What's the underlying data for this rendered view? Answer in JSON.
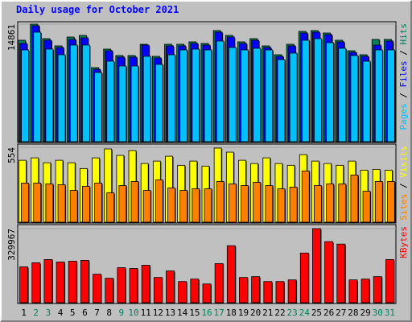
{
  "legend_separator": " / ",
  "chart_data": [
    {
      "type": "bar",
      "title": "Daily usage for October 2021",
      "ylim": [
        0,
        14861
      ],
      "yticks": [
        14861
      ],
      "series": [
        {
          "name": "Hits",
          "color": "#00805c",
          "values": [
            12827,
            14861,
            13030,
            12114,
            13233,
            13437,
            9365,
            11706,
            10891,
            10891,
            12317,
            10790,
            12317,
            12317,
            12623,
            12419,
            14047,
            13437,
            12623,
            13030,
            12114,
            10993,
            12317,
            13946,
            14047,
            13742,
            12827,
            11502,
            10993,
            12928,
            12928
          ]
        },
        {
          "name": "Files",
          "color": "#0000ff",
          "values": [
            12420,
            14657,
            12827,
            11910,
            12928,
            13131,
            9161,
            11502,
            10688,
            10688,
            12216,
            10586,
            12114,
            12114,
            12420,
            12216,
            13845,
            13233,
            12420,
            12827,
            11910,
            10790,
            12114,
            13742,
            13845,
            13538,
            12623,
            11299,
            10790,
            12216,
            12725
          ]
        },
        {
          "name": "Pages",
          "color": "#00c0ff",
          "values": [
            11605,
            13845,
            11707,
            10994,
            12216,
            12216,
            8755,
            10180,
            9569,
            9569,
            10791,
            9773,
            10994,
            11605,
            11707,
            11605,
            12725,
            11911,
            11605,
            11809,
            11605,
            10384,
            11198,
            12827,
            13030,
            12521,
            11809,
            10893,
            10180,
            11605,
            11605
          ]
        }
      ]
    },
    {
      "type": "bar",
      "ylim": [
        0,
        554
      ],
      "yticks": [
        554
      ],
      "series": [
        {
          "name": "Visits",
          "color": "#ffff00",
          "values": [
            458,
            476,
            440,
            458,
            440,
            397,
            476,
            542,
            494,
            530,
            434,
            452,
            488,
            421,
            452,
            415,
            548,
            518,
            458,
            434,
            476,
            434,
            421,
            500,
            452,
            434,
            421,
            452,
            385,
            391,
            385
          ]
        },
        {
          "name": "Sites",
          "color": "#ff8000",
          "values": [
            289,
            289,
            283,
            277,
            235,
            265,
            289,
            217,
            271,
            301,
            235,
            313,
            253,
            235,
            247,
            247,
            301,
            283,
            271,
            295,
            271,
            247,
            259,
            379,
            271,
            283,
            283,
            349,
            229,
            301,
            301
          ]
        }
      ]
    },
    {
      "type": "bar",
      "ylim": [
        0,
        329967
      ],
      "yticks": [
        329967
      ],
      "categories": [
        "1",
        "2",
        "3",
        "4",
        "5",
        "6",
        "7",
        "8",
        "9",
        "10",
        "11",
        "12",
        "13",
        "14",
        "15",
        "16",
        "17",
        "18",
        "19",
        "20",
        "21",
        "22",
        "23",
        "24",
        "25",
        "26",
        "27",
        "28",
        "29",
        "30",
        "31"
      ],
      "category_colors": [
        "#000000",
        "#00805c",
        "#00805c",
        "#000000",
        "#000000",
        "#000000",
        "#000000",
        "#000000",
        "#00805c",
        "#00805c",
        "#000000",
        "#000000",
        "#000000",
        "#000000",
        "#000000",
        "#00805c",
        "#00805c",
        "#000000",
        "#000000",
        "#000000",
        "#000000",
        "#000000",
        "#00805c",
        "#00805c",
        "#000000",
        "#000000",
        "#000000",
        "#000000",
        "#000000",
        "#00805c",
        "#00805c"
      ],
      "series": [
        {
          "name": "KBytes",
          "color": "#ff0000",
          "values": [
            159544,
            177674,
            192178,
            181300,
            184926,
            188552,
            126910,
            108780,
            155918,
            152292,
            166796,
            112406,
            141414,
            94276,
            105154,
            83398,
            174048,
            253820,
            112406,
            116032,
            94276,
            94276,
            101528,
            221186,
            329967,
            271950,
            261072,
            101528,
            105154,
            116032,
            192178
          ]
        }
      ]
    }
  ]
}
